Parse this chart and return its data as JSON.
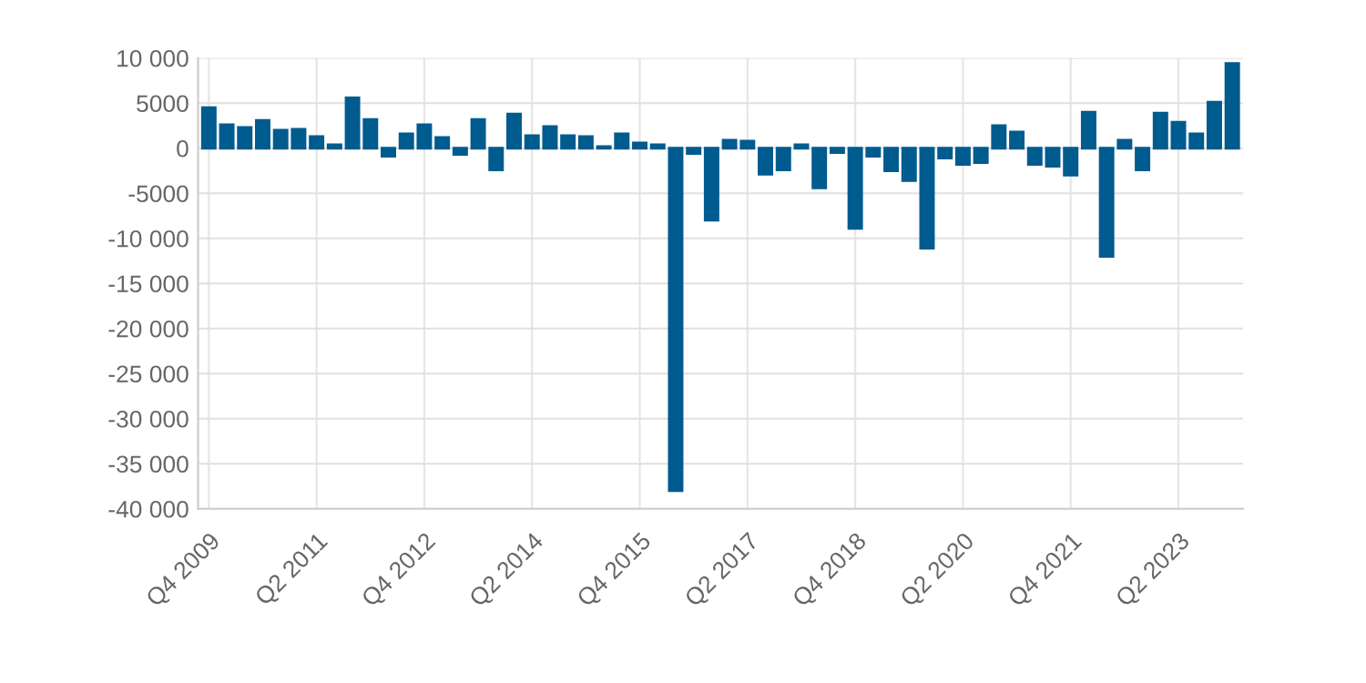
{
  "chart_data": {
    "type": "bar",
    "categories": [
      "Q4 2009",
      null,
      null,
      null,
      null,
      null,
      "Q2 2011",
      null,
      null,
      null,
      null,
      null,
      "Q4 2012",
      null,
      null,
      null,
      null,
      null,
      "Q2 2014",
      null,
      null,
      null,
      null,
      null,
      "Q4 2015",
      null,
      null,
      null,
      null,
      null,
      "Q2 2017",
      null,
      null,
      null,
      null,
      null,
      "Q4 2018",
      null,
      null,
      null,
      null,
      null,
      "Q2 2020",
      null,
      null,
      null,
      null,
      null,
      "Q4 2021",
      null,
      null,
      null,
      null,
      null,
      "Q2 2023",
      null,
      null,
      null
    ],
    "values": [
      4500,
      2600,
      2300,
      3100,
      2000,
      2100,
      1300,
      400,
      5600,
      3200,
      -900,
      1600,
      2600,
      1200,
      -700,
      3200,
      -2400,
      3800,
      1400,
      2400,
      1400,
      1300,
      200,
      1600,
      600,
      400,
      -38000,
      -600,
      -8000,
      900,
      800,
      -2900,
      -2400,
      400,
      -4400,
      -500,
      -8900,
      -900,
      -2500,
      -3600,
      -11100,
      -1100,
      -1800,
      -1600,
      2500,
      1800,
      -1800,
      -2000,
      -3000,
      4000,
      -12000,
      900,
      -2400,
      3900,
      2900,
      1600,
      5100,
      9400
    ],
    "color": "#005b8f",
    "ylim": [
      -40000,
      10000
    ],
    "yticks": [
      {
        "value": 10000,
        "label": "10 000"
      },
      5000,
      0,
      -5000,
      {
        "value": -10000,
        "label": "-10 000"
      },
      {
        "value": -15000,
        "label": "-15 000"
      },
      {
        "value": -20000,
        "label": "-20 000"
      },
      {
        "value": -25000,
        "label": "-25 000"
      },
      {
        "value": -30000,
        "label": "-30 000"
      },
      {
        "value": -35000,
        "label": "-35 000"
      },
      {
        "value": -40000,
        "label": "-40 000"
      }
    ],
    "grid": true
  }
}
